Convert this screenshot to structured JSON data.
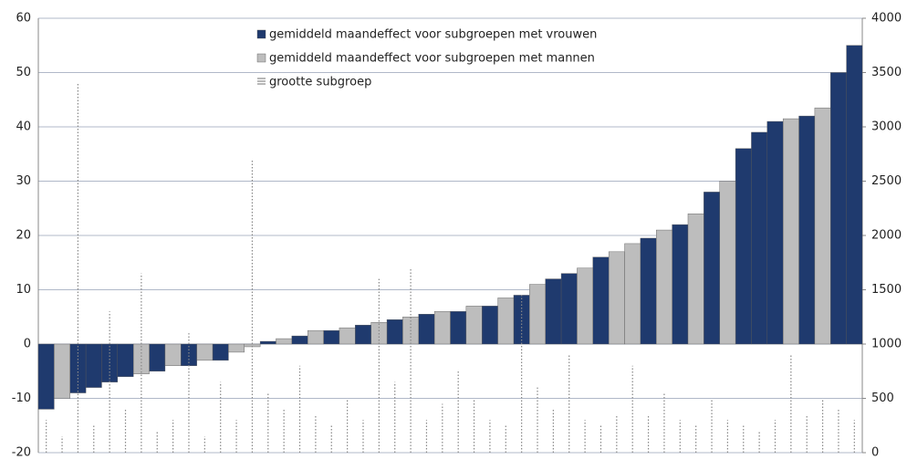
{
  "chart_data": {
    "type": "bar",
    "categories": [
      null,
      null,
      null,
      null,
      null,
      null,
      null,
      null,
      null,
      null,
      null,
      null,
      null,
      null,
      null,
      null,
      null,
      null,
      null,
      null,
      null,
      null,
      null,
      null,
      null,
      null,
      null,
      null,
      null,
      null,
      null,
      null,
      null,
      null,
      null,
      null,
      null,
      null,
      null,
      null,
      null,
      null,
      null,
      null,
      null,
      null,
      null,
      null,
      null,
      null,
      null,
      null
    ],
    "series": [
      {
        "name": "gemiddeld maandeffect voor subgroepen met vrouwen",
        "color": "#1f3a6e",
        "values": [
          -12,
          null,
          -9,
          -8,
          -7,
          -6,
          null,
          -5,
          null,
          -4,
          null,
          -3,
          null,
          null,
          0.5,
          null,
          1.5,
          null,
          2.5,
          null,
          3.5,
          null,
          4.5,
          null,
          5.5,
          null,
          6,
          null,
          7,
          null,
          9,
          null,
          12,
          13,
          null,
          16,
          null,
          null,
          19.5,
          null,
          22,
          null,
          28,
          null,
          36,
          39,
          41,
          null,
          42,
          null,
          50,
          55
        ]
      },
      {
        "name": "gemiddeld maandeffect voor subgroepen met mannen",
        "color": "#bdbdbd",
        "values": [
          null,
          -10,
          null,
          null,
          null,
          null,
          -5.5,
          null,
          -4,
          null,
          -3,
          null,
          -1.5,
          -0.5,
          null,
          1,
          null,
          2.5,
          null,
          3,
          null,
          4,
          null,
          5,
          null,
          6,
          null,
          7,
          null,
          8.5,
          null,
          11,
          null,
          null,
          14,
          null,
          17,
          18.5,
          null,
          21,
          null,
          24,
          null,
          30,
          null,
          null,
          null,
          41.5,
          null,
          43.5,
          null,
          null
        ]
      },
      {
        "name": "grootte subgroep",
        "color": "#888888",
        "axis": "y2",
        "values": [
          300,
          150,
          3400,
          250,
          1300,
          400,
          1650,
          200,
          300,
          1100,
          150,
          650,
          300,
          2700,
          550,
          400,
          800,
          350,
          250,
          500,
          300,
          1600,
          650,
          1700,
          300,
          450,
          750,
          500,
          300,
          250,
          1450,
          600,
          400,
          900,
          300,
          250,
          350,
          800,
          350,
          550,
          300,
          250,
          500,
          300,
          250,
          200,
          300,
          900,
          350,
          500,
          400,
          300
        ]
      }
    ],
    "ylim": [
      -20,
      60
    ],
    "yticks": [
      -20,
      -10,
      0,
      10,
      20,
      30,
      40,
      50,
      60
    ],
    "y2lim": [
      0,
      4000
    ],
    "y2ticks": [
      0,
      500,
      1000,
      1500,
      2000,
      2500,
      3000,
      3500,
      4000
    ],
    "grid": true
  }
}
